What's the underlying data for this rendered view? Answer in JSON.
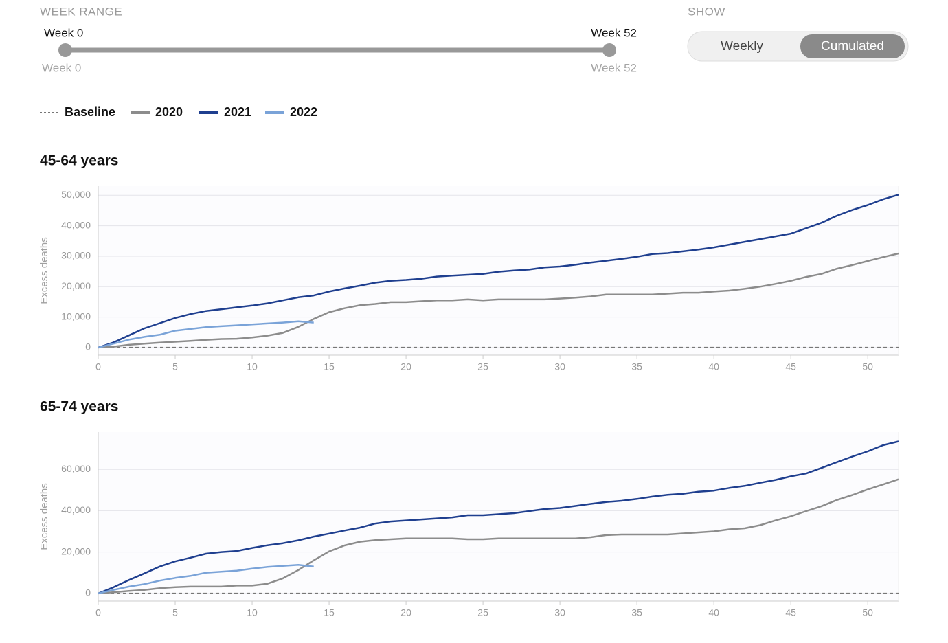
{
  "controls": {
    "week_range": {
      "title": "WEEK RANGE",
      "start_label": "Week 0",
      "end_label": "Week 52",
      "min_label": "Week 0",
      "max_label": "Week 52"
    },
    "show": {
      "title": "SHOW",
      "options": [
        "Weekly",
        "Cumulated"
      ],
      "selected": 1
    }
  },
  "chart_data": [
    {
      "type": "line",
      "title": "45-64 years",
      "y_label": "Excess deaths",
      "grid": true,
      "x": [
        0,
        1,
        2,
        3,
        4,
        5,
        6,
        7,
        8,
        9,
        10,
        11,
        12,
        13,
        14,
        15,
        16,
        17,
        18,
        19,
        20,
        21,
        22,
        23,
        24,
        25,
        26,
        27,
        28,
        29,
        30,
        31,
        32,
        33,
        34,
        35,
        36,
        37,
        38,
        39,
        40,
        41,
        42,
        43,
        44,
        45,
        46,
        47,
        48,
        49,
        50,
        51,
        52
      ],
      "xlim": [
        0,
        52
      ],
      "xticks": [
        0,
        5,
        10,
        15,
        20,
        25,
        30,
        35,
        40,
        45,
        50
      ],
      "ylim": [
        -2500,
        53000
      ],
      "yticks": [
        0,
        {
          "value": 10000,
          "label": "10,000"
        },
        {
          "value": 20000,
          "label": "20,000"
        },
        {
          "value": 30000,
          "label": "30,000"
        },
        {
          "value": 40000,
          "label": "40,000"
        },
        {
          "value": 50000,
          "label": "50,000"
        }
      ],
      "series": [
        {
          "name": "Baseline",
          "color": "#777777",
          "dash": true,
          "values": [
            0,
            0,
            0,
            0,
            0,
            0,
            0,
            0,
            0,
            0,
            0,
            0,
            0,
            0,
            0,
            0,
            0,
            0,
            0,
            0,
            0,
            0,
            0,
            0,
            0,
            0,
            0,
            0,
            0,
            0,
            0,
            0,
            0,
            0,
            0,
            0,
            0,
            0,
            0,
            0,
            0,
            0,
            0,
            0,
            0,
            0,
            0,
            0,
            0,
            0,
            0,
            0,
            0
          ]
        },
        {
          "name": "2020",
          "color": "#8c8c8c",
          "dash": false,
          "values": [
            0,
            300,
            900,
            1300,
            1600,
            1900,
            2200,
            2500,
            2800,
            2900,
            3300,
            3900,
            4800,
            6800,
            9400,
            11600,
            12900,
            13900,
            14300,
            14900,
            14900,
            15200,
            15500,
            15500,
            15800,
            15500,
            15800,
            15800,
            15800,
            15800,
            16100,
            16400,
            16800,
            17400,
            17400,
            17400,
            17400,
            17700,
            18000,
            18000,
            18400,
            18700,
            19300,
            20000,
            20900,
            21900,
            23200,
            24200,
            25900,
            27100,
            28400,
            29700,
            30900
          ]
        },
        {
          "name": "2021",
          "color": "#1f3f8f",
          "dash": false,
          "values": [
            0,
            1700,
            4000,
            6300,
            8000,
            9700,
            11000,
            12000,
            12600,
            13200,
            13800,
            14500,
            15500,
            16500,
            17100,
            18400,
            19400,
            20300,
            21300,
            21900,
            22200,
            22600,
            23300,
            23600,
            23900,
            24200,
            24900,
            25300,
            25600,
            26300,
            26600,
            27200,
            27900,
            28500,
            29100,
            29800,
            30700,
            31000,
            31600,
            32200,
            32900,
            33800,
            34700,
            35600,
            36500,
            37400,
            39200,
            41000,
            43300,
            45200,
            46800,
            48700,
            50200
          ]
        },
        {
          "name": "2022",
          "color": "#7aa3d8",
          "dash": false,
          "values": [
            0,
            1300,
            2600,
            3500,
            4200,
            5500,
            6100,
            6700,
            7000,
            7300,
            7600,
            7900,
            8200,
            8600,
            8200,
            null,
            null,
            null,
            null,
            null,
            null,
            null,
            null,
            null,
            null,
            null,
            null,
            null,
            null,
            null,
            null,
            null,
            null,
            null,
            null,
            null,
            null,
            null,
            null,
            null,
            null,
            null,
            null,
            null,
            null,
            null,
            null,
            null,
            null,
            null,
            null,
            null,
            null
          ]
        }
      ]
    },
    {
      "type": "line",
      "title": "65-74 years",
      "y_label": "Excess deaths",
      "grid": true,
      "x": [
        0,
        1,
        2,
        3,
        4,
        5,
        6,
        7,
        8,
        9,
        10,
        11,
        12,
        13,
        14,
        15,
        16,
        17,
        18,
        19,
        20,
        21,
        22,
        23,
        24,
        25,
        26,
        27,
        28,
        29,
        30,
        31,
        32,
        33,
        34,
        35,
        36,
        37,
        38,
        39,
        40,
        41,
        42,
        43,
        44,
        45,
        46,
        47,
        48,
        49,
        50,
        51,
        52
      ],
      "xlim": [
        0,
        52
      ],
      "xticks": [
        0,
        5,
        10,
        15,
        20,
        25,
        30,
        35,
        40,
        45,
        50
      ],
      "ylim": [
        -3700,
        78000
      ],
      "yticks": [
        0,
        {
          "value": 20000,
          "label": "20,000"
        },
        {
          "value": 40000,
          "label": "40,000"
        },
        {
          "value": 60000,
          "label": "60,000"
        }
      ],
      "series": [
        {
          "name": "Baseline",
          "color": "#777777",
          "dash": true,
          "values": [
            0,
            0,
            0,
            0,
            0,
            0,
            0,
            0,
            0,
            0,
            0,
            0,
            0,
            0,
            0,
            0,
            0,
            0,
            0,
            0,
            0,
            0,
            0,
            0,
            0,
            0,
            0,
            0,
            0,
            0,
            0,
            0,
            0,
            0,
            0,
            0,
            0,
            0,
            0,
            0,
            0,
            0,
            0,
            0,
            0,
            0,
            0,
            0,
            0,
            0,
            0,
            0,
            0
          ]
        },
        {
          "name": "2020",
          "color": "#8c8c8c",
          "dash": false,
          "values": [
            0,
            600,
            1200,
            1700,
            2500,
            3000,
            3300,
            3300,
            3300,
            3800,
            3800,
            4700,
            7300,
            11300,
            16000,
            20300,
            23200,
            25000,
            25800,
            26200,
            26600,
            26600,
            26600,
            26600,
            26200,
            26200,
            26600,
            26600,
            26600,
            26600,
            26600,
            26600,
            27200,
            28200,
            28500,
            28500,
            28500,
            28500,
            29000,
            29500,
            30000,
            31000,
            31500,
            33000,
            35300,
            37300,
            39800,
            42200,
            45200,
            47600,
            50300,
            52700,
            55200
          ]
        },
        {
          "name": "2021",
          "color": "#1f3f8f",
          "dash": false,
          "values": [
            0,
            3000,
            6500,
            9700,
            13000,
            15500,
            17300,
            19200,
            20000,
            20500,
            22000,
            23300,
            24300,
            25700,
            27500,
            28900,
            30400,
            31800,
            33800,
            34800,
            35300,
            35800,
            36300,
            36800,
            37800,
            37800,
            38300,
            38800,
            39800,
            40800,
            41300,
            42300,
            43300,
            44200,
            44800,
            45700,
            46800,
            47700,
            48200,
            49200,
            49700,
            51000,
            52000,
            53500,
            54900,
            56600,
            58000,
            60700,
            63500,
            66200,
            68700,
            71700,
            73500
          ]
        },
        {
          "name": "2022",
          "color": "#7aa3d8",
          "dash": false,
          "values": [
            0,
            1700,
            3300,
            4500,
            6200,
            7500,
            8500,
            10000,
            10500,
            11000,
            12000,
            12800,
            13300,
            13800,
            13000,
            null,
            null,
            null,
            null,
            null,
            null,
            null,
            null,
            null,
            null,
            null,
            null,
            null,
            null,
            null,
            null,
            null,
            null,
            null,
            null,
            null,
            null,
            null,
            null,
            null,
            null,
            null,
            null,
            null,
            null,
            null,
            null,
            null,
            null,
            null,
            null,
            null,
            null
          ]
        }
      ]
    }
  ]
}
